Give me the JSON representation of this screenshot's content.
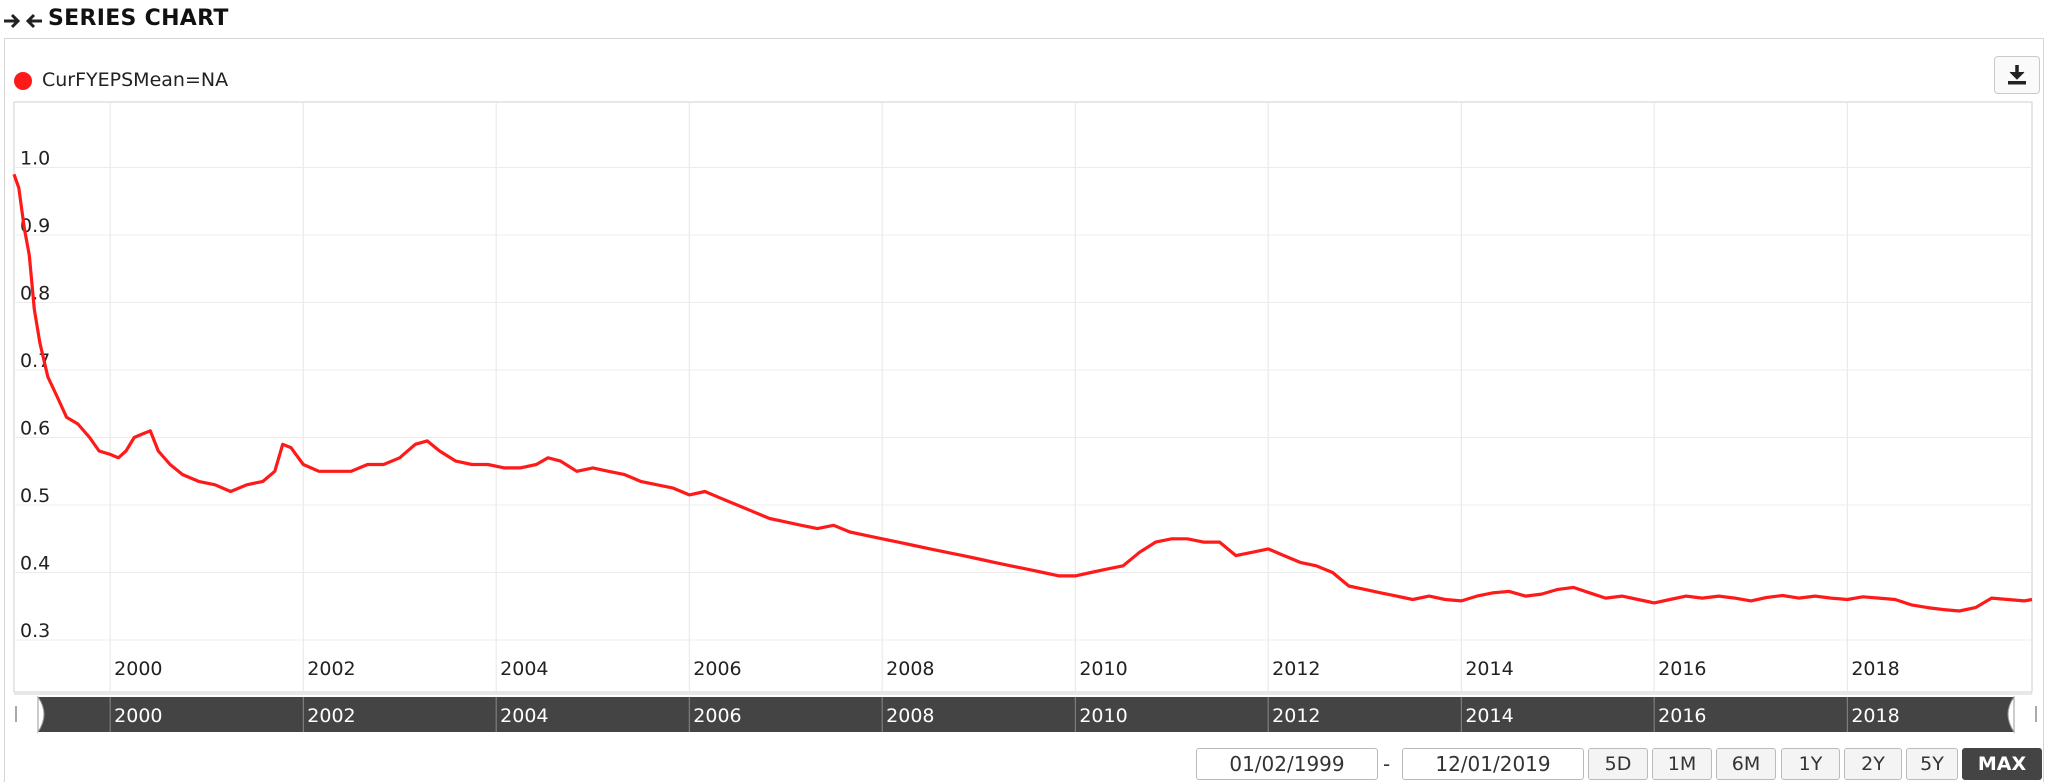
{
  "header": {
    "title": "SERIES CHART",
    "collapse_icon": "collapse-arrows-icon"
  },
  "legend": {
    "label": "CurFYEPSMean=NA",
    "color": "#ff1a1a"
  },
  "toolbar": {
    "download_icon": "download-icon"
  },
  "date_range": {
    "start": "01/02/1999",
    "separator": "-",
    "end": "12/01/2019"
  },
  "range_buttons": [
    {
      "label": "5D",
      "active": false
    },
    {
      "label": "1M",
      "active": false
    },
    {
      "label": "6M",
      "active": false
    },
    {
      "label": "1Y",
      "active": false
    },
    {
      "label": "2Y",
      "active": false
    },
    {
      "label": "5Y",
      "active": false
    },
    {
      "label": "MAX",
      "active": true
    }
  ],
  "navigator": {
    "labels": [
      "2000",
      "2002",
      "2004",
      "2006",
      "2008",
      "2010",
      "2012",
      "2014",
      "2016",
      "2018"
    ]
  },
  "chart_data": {
    "type": "line",
    "title": "",
    "xlabel": "",
    "ylabel": "",
    "ylim": [
      0.3,
      1.0
    ],
    "xlim": [
      "1999-01-02",
      "2019-12-01"
    ],
    "grid": true,
    "legend_position": "top-left",
    "y_ticks": [
      "0.3",
      "0.4",
      "0.5",
      "0.6",
      "0.7",
      "0.8",
      "0.9",
      "1.0"
    ],
    "x_ticks": [
      "2000",
      "2002",
      "2004",
      "2006",
      "2008",
      "2010",
      "2012",
      "2014",
      "2016",
      "2018"
    ],
    "series": [
      {
        "name": "CurFYEPSMean=NA",
        "color": "#ff1a1a",
        "points": [
          [
            "1999-01-02",
            0.99
          ],
          [
            "1999-01-20",
            0.97
          ],
          [
            "1999-02-10",
            0.91
          ],
          [
            "1999-03-01",
            0.87
          ],
          [
            "1999-03-20",
            0.79
          ],
          [
            "1999-04-10",
            0.74
          ],
          [
            "1999-05-10",
            0.69
          ],
          [
            "1999-06-15",
            0.66
          ],
          [
            "1999-07-20",
            0.63
          ],
          [
            "1999-09-01",
            0.62
          ],
          [
            "1999-10-15",
            0.6
          ],
          [
            "1999-11-20",
            0.58
          ],
          [
            "2000-01-01",
            0.575
          ],
          [
            "2000-02-01",
            0.57
          ],
          [
            "2000-03-01",
            0.58
          ],
          [
            "2000-04-01",
            0.6
          ],
          [
            "2000-05-01",
            0.605
          ],
          [
            "2000-06-01",
            0.61
          ],
          [
            "2000-07-01",
            0.58
          ],
          [
            "2000-08-15",
            0.56
          ],
          [
            "2000-10-01",
            0.545
          ],
          [
            "2000-12-01",
            0.535
          ],
          [
            "2001-02-01",
            0.53
          ],
          [
            "2001-04-01",
            0.52
          ],
          [
            "2001-06-01",
            0.53
          ],
          [
            "2001-08-01",
            0.535
          ],
          [
            "2001-09-15",
            0.55
          ],
          [
            "2001-10-15",
            0.59
          ],
          [
            "2001-11-15",
            0.585
          ],
          [
            "2002-01-01",
            0.56
          ],
          [
            "2002-03-01",
            0.55
          ],
          [
            "2002-05-01",
            0.55
          ],
          [
            "2002-07-01",
            0.55
          ],
          [
            "2002-09-01",
            0.56
          ],
          [
            "2002-11-01",
            0.56
          ],
          [
            "2003-01-01",
            0.57
          ],
          [
            "2003-03-01",
            0.59
          ],
          [
            "2003-04-15",
            0.595
          ],
          [
            "2003-06-01",
            0.58
          ],
          [
            "2003-08-01",
            0.565
          ],
          [
            "2003-10-01",
            0.56
          ],
          [
            "2003-12-01",
            0.56
          ],
          [
            "2004-02-01",
            0.555
          ],
          [
            "2004-04-01",
            0.555
          ],
          [
            "2004-06-01",
            0.56
          ],
          [
            "2004-07-15",
            0.57
          ],
          [
            "2004-09-01",
            0.565
          ],
          [
            "2004-11-01",
            0.55
          ],
          [
            "2005-01-01",
            0.555
          ],
          [
            "2005-03-01",
            0.55
          ],
          [
            "2005-05-01",
            0.545
          ],
          [
            "2005-07-01",
            0.535
          ],
          [
            "2005-09-01",
            0.53
          ],
          [
            "2005-11-01",
            0.525
          ],
          [
            "2006-01-01",
            0.515
          ],
          [
            "2006-03-01",
            0.52
          ],
          [
            "2006-05-01",
            0.51
          ],
          [
            "2006-07-01",
            0.5
          ],
          [
            "2006-09-01",
            0.49
          ],
          [
            "2006-11-01",
            0.48
          ],
          [
            "2007-01-01",
            0.475
          ],
          [
            "2007-03-01",
            0.47
          ],
          [
            "2007-05-01",
            0.465
          ],
          [
            "2007-07-01",
            0.47
          ],
          [
            "2007-09-01",
            0.46
          ],
          [
            "2007-11-01",
            0.455
          ],
          [
            "2008-01-01",
            0.45
          ],
          [
            "2008-03-01",
            0.445
          ],
          [
            "2008-05-01",
            0.44
          ],
          [
            "2008-07-01",
            0.435
          ],
          [
            "2008-09-01",
            0.43
          ],
          [
            "2008-11-01",
            0.425
          ],
          [
            "2009-01-01",
            0.42
          ],
          [
            "2009-03-01",
            0.415
          ],
          [
            "2009-05-01",
            0.41
          ],
          [
            "2009-07-01",
            0.405
          ],
          [
            "2009-09-01",
            0.4
          ],
          [
            "2009-11-01",
            0.395
          ],
          [
            "2010-01-01",
            0.395
          ],
          [
            "2010-03-01",
            0.4
          ],
          [
            "2010-05-01",
            0.405
          ],
          [
            "2010-07-01",
            0.41
          ],
          [
            "2010-09-01",
            0.43
          ],
          [
            "2010-11-01",
            0.445
          ],
          [
            "2011-01-01",
            0.45
          ],
          [
            "2011-03-01",
            0.45
          ],
          [
            "2011-05-01",
            0.445
          ],
          [
            "2011-07-01",
            0.445
          ],
          [
            "2011-09-01",
            0.425
          ],
          [
            "2011-11-01",
            0.43
          ],
          [
            "2012-01-01",
            0.435
          ],
          [
            "2012-03-01",
            0.425
          ],
          [
            "2012-05-01",
            0.415
          ],
          [
            "2012-07-01",
            0.41
          ],
          [
            "2012-09-01",
            0.4
          ],
          [
            "2012-11-01",
            0.38
          ],
          [
            "2013-01-01",
            0.375
          ],
          [
            "2013-03-01",
            0.37
          ],
          [
            "2013-05-01",
            0.365
          ],
          [
            "2013-07-01",
            0.36
          ],
          [
            "2013-09-01",
            0.365
          ],
          [
            "2013-11-01",
            0.36
          ],
          [
            "2014-01-01",
            0.358
          ],
          [
            "2014-03-01",
            0.365
          ],
          [
            "2014-05-01",
            0.37
          ],
          [
            "2014-07-01",
            0.372
          ],
          [
            "2014-09-01",
            0.365
          ],
          [
            "2014-11-01",
            0.368
          ],
          [
            "2015-01-01",
            0.375
          ],
          [
            "2015-03-01",
            0.378
          ],
          [
            "2015-05-01",
            0.37
          ],
          [
            "2015-07-01",
            0.362
          ],
          [
            "2015-09-01",
            0.365
          ],
          [
            "2015-11-01",
            0.36
          ],
          [
            "2016-01-01",
            0.355
          ],
          [
            "2016-03-01",
            0.36
          ],
          [
            "2016-05-01",
            0.365
          ],
          [
            "2016-07-01",
            0.362
          ],
          [
            "2016-09-01",
            0.365
          ],
          [
            "2016-11-01",
            0.362
          ],
          [
            "2017-01-01",
            0.358
          ],
          [
            "2017-03-01",
            0.363
          ],
          [
            "2017-05-01",
            0.366
          ],
          [
            "2017-07-01",
            0.362
          ],
          [
            "2017-09-01",
            0.365
          ],
          [
            "2017-11-01",
            0.362
          ],
          [
            "2018-01-01",
            0.36
          ],
          [
            "2018-03-01",
            0.364
          ],
          [
            "2018-05-01",
            0.362
          ],
          [
            "2018-07-01",
            0.36
          ],
          [
            "2018-09-01",
            0.352
          ],
          [
            "2018-11-01",
            0.348
          ],
          [
            "2019-01-01",
            0.345
          ],
          [
            "2019-03-01",
            0.343
          ],
          [
            "2019-05-01",
            0.348
          ],
          [
            "2019-07-01",
            0.362
          ],
          [
            "2019-09-01",
            0.36
          ],
          [
            "2019-11-01",
            0.358
          ],
          [
            "2019-12-01",
            0.36
          ]
        ]
      }
    ]
  }
}
